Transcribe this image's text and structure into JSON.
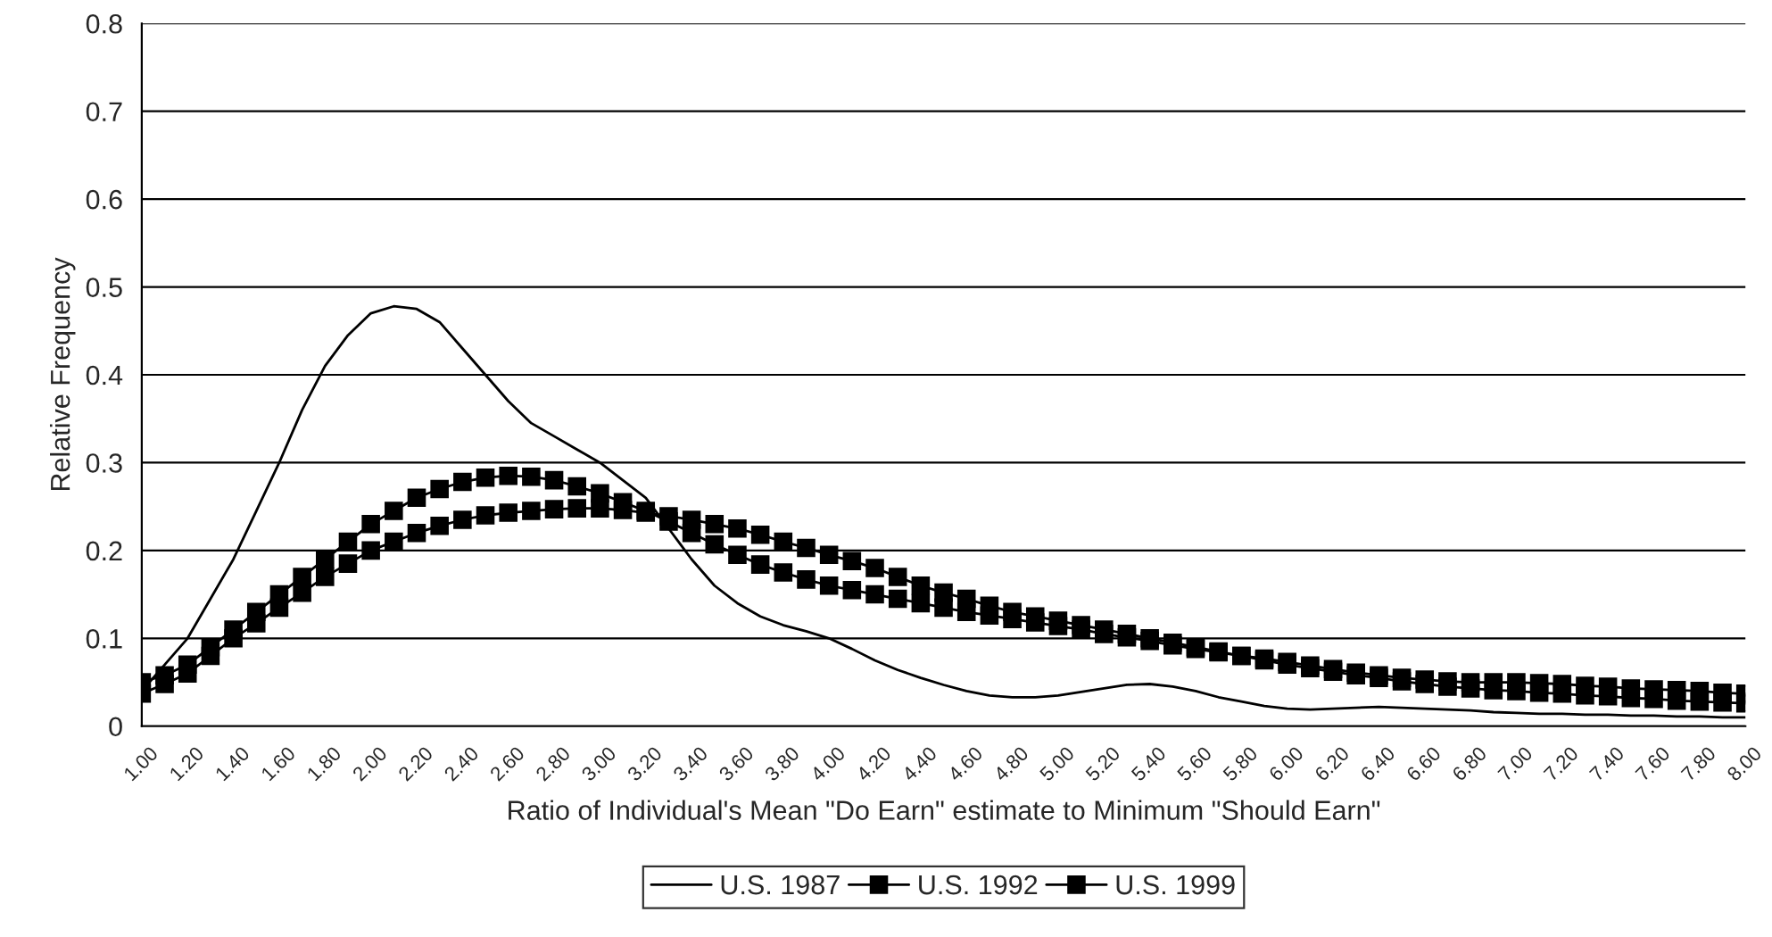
{
  "chart_data": {
    "type": "line",
    "xlabel": "Ratio of Individual's Mean \"Do Earn\" estimate to Minimum \"Should Earn\"",
    "ylabel": "Relative Frequency",
    "x": [
      1.0,
      1.1,
      1.2,
      1.3,
      1.4,
      1.5,
      1.6,
      1.7,
      1.8,
      1.9,
      2.0,
      2.1,
      2.2,
      2.3,
      2.4,
      2.5,
      2.6,
      2.7,
      2.8,
      2.9,
      3.0,
      3.1,
      3.2,
      3.3,
      3.4,
      3.5,
      3.6,
      3.7,
      3.8,
      3.9,
      4.0,
      4.1,
      4.2,
      4.3,
      4.4,
      4.5,
      4.6,
      4.7,
      4.8,
      4.9,
      5.0,
      5.1,
      5.2,
      5.3,
      5.4,
      5.5,
      5.6,
      5.7,
      5.8,
      5.9,
      6.0,
      6.1,
      6.2,
      6.3,
      6.4,
      6.5,
      6.6,
      6.7,
      6.8,
      6.9,
      7.0,
      7.1,
      7.2,
      7.3,
      7.4,
      7.5,
      7.6,
      7.7,
      7.8,
      7.9,
      8.0
    ],
    "series": [
      {
        "name": "U.S. 1987",
        "color": "#000000",
        "marker": "none",
        "values": [
          0.04,
          0.07,
          0.1,
          0.145,
          0.19,
          0.245,
          0.3,
          0.36,
          0.41,
          0.445,
          0.47,
          0.478,
          0.475,
          0.46,
          0.43,
          0.4,
          0.37,
          0.345,
          0.33,
          0.315,
          0.3,
          0.28,
          0.26,
          0.225,
          0.19,
          0.16,
          0.14,
          0.125,
          0.115,
          0.108,
          0.1,
          0.088,
          0.075,
          0.064,
          0.055,
          0.047,
          0.04,
          0.035,
          0.033,
          0.033,
          0.035,
          0.039,
          0.043,
          0.047,
          0.048,
          0.045,
          0.04,
          0.033,
          0.028,
          0.023,
          0.02,
          0.019,
          0.02,
          0.021,
          0.022,
          0.021,
          0.02,
          0.019,
          0.018,
          0.016,
          0.015,
          0.014,
          0.014,
          0.013,
          0.013,
          0.012,
          0.012,
          0.011,
          0.011,
          0.01,
          0.01
        ]
      },
      {
        "name": "U.S. 1992",
        "color": "#000000",
        "marker": "square",
        "values": [
          0.037,
          0.048,
          0.06,
          0.08,
          0.1,
          0.117,
          0.135,
          0.152,
          0.17,
          0.185,
          0.2,
          0.21,
          0.22,
          0.228,
          0.235,
          0.24,
          0.243,
          0.245,
          0.247,
          0.248,
          0.248,
          0.246,
          0.243,
          0.239,
          0.235,
          0.23,
          0.225,
          0.218,
          0.21,
          0.203,
          0.195,
          0.188,
          0.18,
          0.17,
          0.16,
          0.152,
          0.145,
          0.137,
          0.13,
          0.125,
          0.12,
          0.115,
          0.11,
          0.105,
          0.1,
          0.095,
          0.09,
          0.085,
          0.08,
          0.077,
          0.073,
          0.069,
          0.065,
          0.061,
          0.058,
          0.055,
          0.053,
          0.051,
          0.05,
          0.05,
          0.05,
          0.049,
          0.048,
          0.046,
          0.045,
          0.043,
          0.042,
          0.041,
          0.04,
          0.038,
          0.037
        ]
      },
      {
        "name": "U.S. 1999",
        "color": "#000000",
        "marker": "square",
        "values": [
          0.05,
          0.058,
          0.07,
          0.09,
          0.11,
          0.13,
          0.15,
          0.17,
          0.19,
          0.21,
          0.23,
          0.245,
          0.26,
          0.27,
          0.278,
          0.283,
          0.285,
          0.284,
          0.28,
          0.273,
          0.265,
          0.255,
          0.245,
          0.233,
          0.22,
          0.207,
          0.195,
          0.184,
          0.175,
          0.167,
          0.16,
          0.155,
          0.15,
          0.145,
          0.14,
          0.135,
          0.13,
          0.126,
          0.122,
          0.118,
          0.114,
          0.11,
          0.105,
          0.101,
          0.097,
          0.092,
          0.088,
          0.084,
          0.08,
          0.075,
          0.07,
          0.066,
          0.062,
          0.058,
          0.055,
          0.051,
          0.048,
          0.045,
          0.043,
          0.041,
          0.04,
          0.038,
          0.037,
          0.035,
          0.034,
          0.032,
          0.031,
          0.029,
          0.028,
          0.027,
          0.026
        ]
      }
    ],
    "xlim": [
      1.0,
      8.0
    ],
    "xticks": [
      {
        "value": 1.0,
        "label": "1.00"
      },
      {
        "value": 1.2,
        "label": "1.20"
      },
      {
        "value": 1.4,
        "label": "1.40"
      },
      {
        "value": 1.6,
        "label": "1.60"
      },
      {
        "value": 1.8,
        "label": "1.80"
      },
      {
        "value": 2.0,
        "label": "2.00"
      },
      {
        "value": 2.2,
        "label": "2.20"
      },
      {
        "value": 2.4,
        "label": "2.40"
      },
      {
        "value": 2.6,
        "label": "2.60"
      },
      {
        "value": 2.8,
        "label": "2.80"
      },
      {
        "value": 3.0,
        "label": "3.00"
      },
      {
        "value": 3.2,
        "label": "3.20"
      },
      {
        "value": 3.4,
        "label": "3.40"
      },
      {
        "value": 3.6,
        "label": "3.60"
      },
      {
        "value": 3.8,
        "label": "3.80"
      },
      {
        "value": 4.0,
        "label": "4.00"
      },
      {
        "value": 4.2,
        "label": "4.20"
      },
      {
        "value": 4.4,
        "label": "4.40"
      },
      {
        "value": 4.6,
        "label": "4.60"
      },
      {
        "value": 4.8,
        "label": "4.80"
      },
      {
        "value": 5.0,
        "label": "5.00"
      },
      {
        "value": 5.2,
        "label": "5.20"
      },
      {
        "value": 5.4,
        "label": "5.40"
      },
      {
        "value": 5.6,
        "label": "5.60"
      },
      {
        "value": 5.8,
        "label": "5.80"
      },
      {
        "value": 6.0,
        "label": "6.00"
      },
      {
        "value": 6.2,
        "label": "6.20"
      },
      {
        "value": 6.4,
        "label": "6.40"
      },
      {
        "value": 6.6,
        "label": "6.60"
      },
      {
        "value": 6.8,
        "label": "6.80"
      },
      {
        "value": 7.0,
        "label": "7.00"
      },
      {
        "value": 7.2,
        "label": "7.20"
      },
      {
        "value": 7.4,
        "label": "7.40"
      },
      {
        "value": 7.6,
        "label": "7.60"
      },
      {
        "value": 7.8,
        "label": "7.80"
      },
      {
        "value": 8.0,
        "label": "8.00"
      }
    ],
    "ylim": [
      0,
      0.8
    ],
    "yticks": [
      0,
      0.1,
      0.2,
      0.3,
      0.4,
      0.5,
      0.6,
      0.7,
      0.8
    ],
    "grid": "y",
    "legend": "bottom",
    "line_style": "solid"
  }
}
